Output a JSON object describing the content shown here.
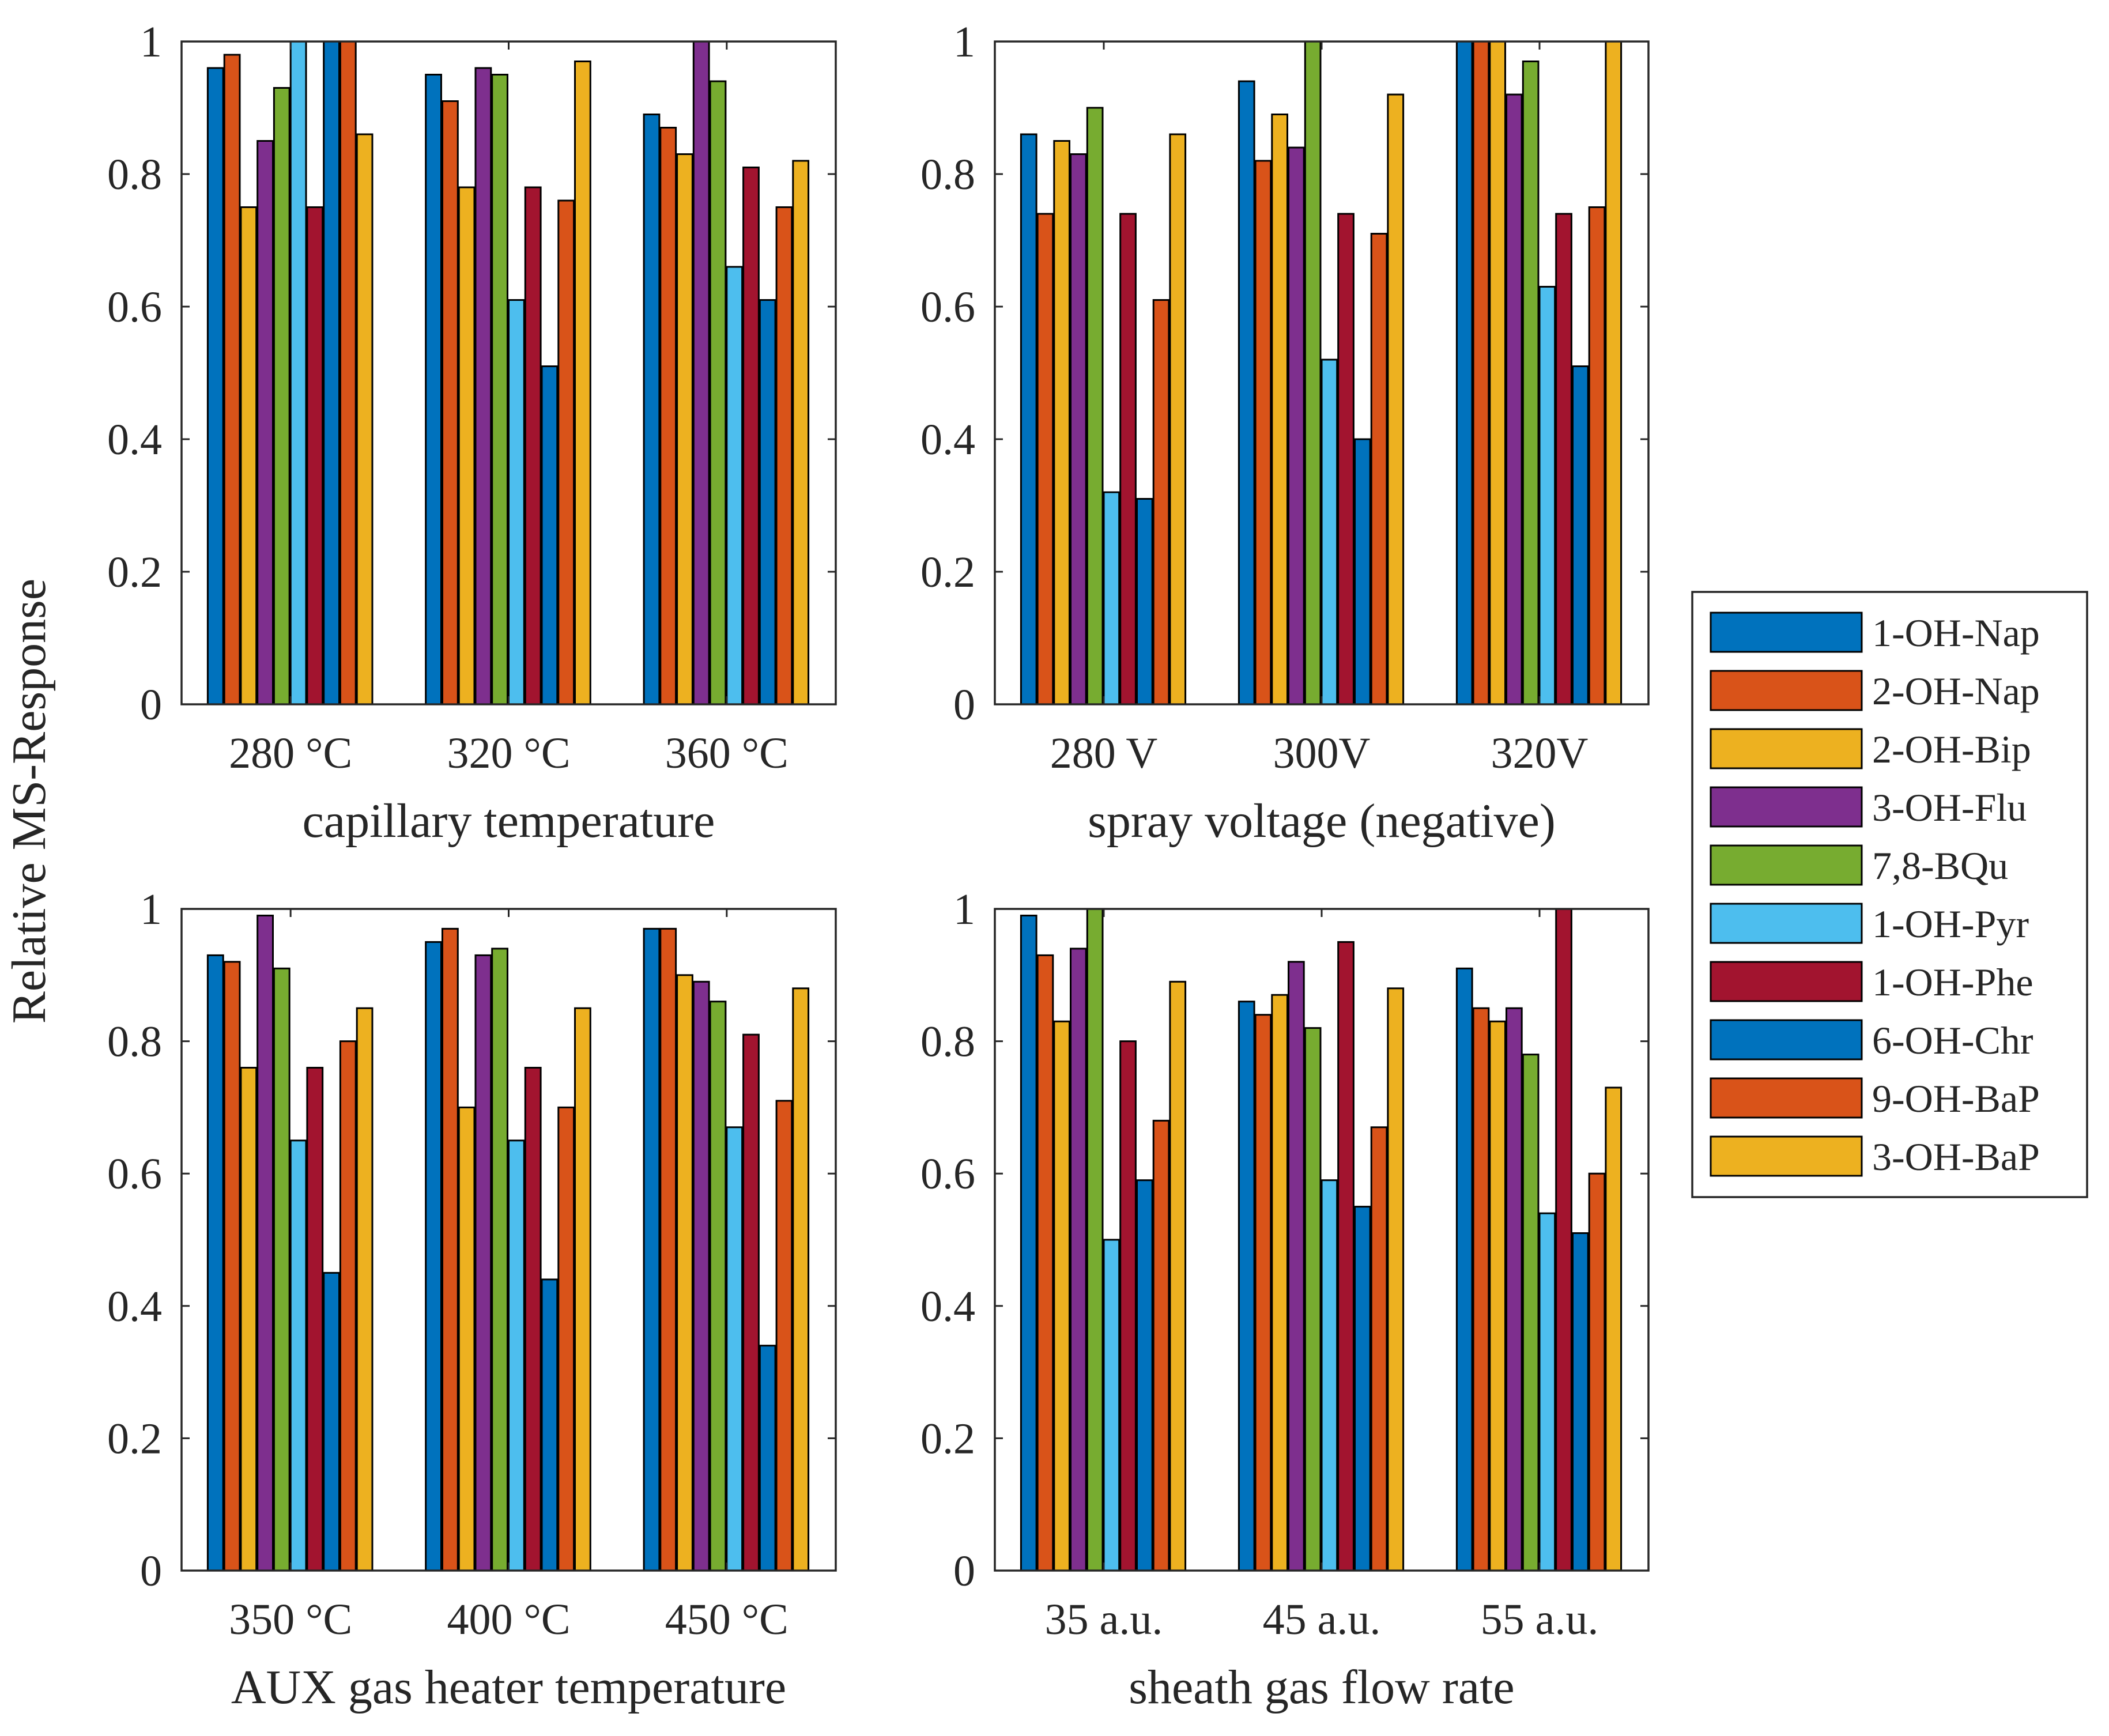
{
  "ylabel": "Relative MS-Response",
  "legend": {
    "placement": "right",
    "entries": [
      "1-OH-Nap",
      "2-OH-Nap",
      "2-OH-Bip",
      "3-OH-Flu",
      "7,8-BQu",
      "1-OH-Pyr",
      "1-OH-Phe",
      "6-OH-Chr",
      "9-OH-BaP",
      "3-OH-BaP"
    ],
    "colors": [
      "#0072BD",
      "#D95319",
      "#EDB120",
      "#7E2F8E",
      "#77AC30",
      "#4DBEEE",
      "#A2142F",
      "#0072BD",
      "#D95319",
      "#EDB120"
    ]
  },
  "chart_data": [
    {
      "type": "bar",
      "xlabel": "capillary temperature",
      "ylabel": "Relative MS-Response",
      "categories": [
        "280 °C",
        "320 °C",
        "360 °C"
      ],
      "ylim": [
        0,
        1
      ],
      "yticks": [
        "0",
        "0.2",
        "0.4",
        "0.6",
        "0.8",
        "1"
      ],
      "grid": false,
      "series": [
        {
          "name": "1-OH-Nap",
          "values": [
            0.96,
            0.95,
            0.89
          ]
        },
        {
          "name": "2-OH-Nap",
          "values": [
            0.98,
            0.91,
            0.87
          ]
        },
        {
          "name": "2-OH-Bip",
          "values": [
            0.75,
            0.78,
            0.83
          ]
        },
        {
          "name": "3-OH-Flu",
          "values": [
            0.85,
            0.96,
            1.0
          ]
        },
        {
          "name": "7,8-BQu",
          "values": [
            0.93,
            0.95,
            0.94
          ]
        },
        {
          "name": "1-OH-Pyr",
          "values": [
            1.0,
            0.61,
            0.66
          ]
        },
        {
          "name": "1-OH-Phe",
          "values": [
            0.75,
            0.78,
            0.81
          ]
        },
        {
          "name": "6-OH-Chr",
          "values": [
            1.0,
            0.51,
            0.61
          ]
        },
        {
          "name": "9-OH-BaP",
          "values": [
            1.0,
            0.76,
            0.75
          ]
        },
        {
          "name": "3-OH-BaP",
          "values": [
            0.86,
            0.97,
            0.82
          ]
        }
      ]
    },
    {
      "type": "bar",
      "xlabel": "spray voltage (negative)",
      "ylabel": "",
      "categories": [
        "280 V",
        "300V",
        "320V"
      ],
      "ylim": [
        0,
        1
      ],
      "yticks": [
        "0",
        "0.2",
        "0.4",
        "0.6",
        "0.8",
        "1"
      ],
      "grid": false,
      "series": [
        {
          "name": "1-OH-Nap",
          "values": [
            0.86,
            0.94,
            1.0
          ]
        },
        {
          "name": "2-OH-Nap",
          "values": [
            0.74,
            0.82,
            1.0
          ]
        },
        {
          "name": "2-OH-Bip",
          "values": [
            0.85,
            0.89,
            1.0
          ]
        },
        {
          "name": "3-OH-Flu",
          "values": [
            0.83,
            0.84,
            0.92
          ]
        },
        {
          "name": "7,8-BQu",
          "values": [
            0.9,
            1.0,
            0.97
          ]
        },
        {
          "name": "1-OH-Pyr",
          "values": [
            0.32,
            0.52,
            0.63
          ]
        },
        {
          "name": "1-OH-Phe",
          "values": [
            0.74,
            0.74,
            0.74
          ]
        },
        {
          "name": "6-OH-Chr",
          "values": [
            0.31,
            0.4,
            0.51
          ]
        },
        {
          "name": "9-OH-BaP",
          "values": [
            0.61,
            0.71,
            0.75
          ]
        },
        {
          "name": "3-OH-BaP",
          "values": [
            0.86,
            0.92,
            1.0
          ]
        }
      ]
    },
    {
      "type": "bar",
      "xlabel": "AUX gas heater temperature",
      "ylabel": "Relative MS-Response",
      "categories": [
        "350 °C",
        "400 °C",
        "450 °C"
      ],
      "ylim": [
        0,
        1
      ],
      "yticks": [
        "0",
        "0.2",
        "0.4",
        "0.6",
        "0.8",
        "1"
      ],
      "grid": false,
      "series": [
        {
          "name": "1-OH-Nap",
          "values": [
            0.93,
            0.95,
            0.97
          ]
        },
        {
          "name": "2-OH-Nap",
          "values": [
            0.92,
            0.97,
            0.97
          ]
        },
        {
          "name": "2-OH-Bip",
          "values": [
            0.76,
            0.7,
            0.9
          ]
        },
        {
          "name": "3-OH-Flu",
          "values": [
            0.99,
            0.93,
            0.89
          ]
        },
        {
          "name": "7,8-BQu",
          "values": [
            0.91,
            0.94,
            0.86
          ]
        },
        {
          "name": "1-OH-Pyr",
          "values": [
            0.65,
            0.65,
            0.67
          ]
        },
        {
          "name": "1-OH-Phe",
          "values": [
            0.76,
            0.76,
            0.81
          ]
        },
        {
          "name": "6-OH-Chr",
          "values": [
            0.45,
            0.44,
            0.34
          ]
        },
        {
          "name": "9-OH-BaP",
          "values": [
            0.8,
            0.7,
            0.71
          ]
        },
        {
          "name": "3-OH-BaP",
          "values": [
            0.85,
            0.85,
            0.88
          ]
        }
      ]
    },
    {
      "type": "bar",
      "xlabel": "sheath  gas flow rate",
      "ylabel": "",
      "categories": [
        "35 a.u.",
        "45 a.u.",
        "55 a.u."
      ],
      "ylim": [
        0,
        1
      ],
      "yticks": [
        "0",
        "0.2",
        "0.4",
        "0.6",
        "0.8",
        "1"
      ],
      "grid": false,
      "series": [
        {
          "name": "1-OH-Nap",
          "values": [
            0.99,
            0.86,
            0.91
          ]
        },
        {
          "name": "2-OH-Nap",
          "values": [
            0.93,
            0.84,
            0.85
          ]
        },
        {
          "name": "2-OH-Bip",
          "values": [
            0.83,
            0.87,
            0.83
          ]
        },
        {
          "name": "3-OH-Flu",
          "values": [
            0.94,
            0.92,
            0.85
          ]
        },
        {
          "name": "7,8-BQu",
          "values": [
            1.0,
            0.82,
            0.78
          ]
        },
        {
          "name": "1-OH-Pyr",
          "values": [
            0.5,
            0.59,
            0.54
          ]
        },
        {
          "name": "1-OH-Phe",
          "values": [
            0.8,
            0.95,
            1.0
          ]
        },
        {
          "name": "6-OH-Chr",
          "values": [
            0.59,
            0.55,
            0.51
          ]
        },
        {
          "name": "9-OH-BaP",
          "values": [
            0.68,
            0.67,
            0.6
          ]
        },
        {
          "name": "3-OH-BaP",
          "values": [
            0.89,
            0.88,
            0.73
          ]
        }
      ]
    }
  ]
}
